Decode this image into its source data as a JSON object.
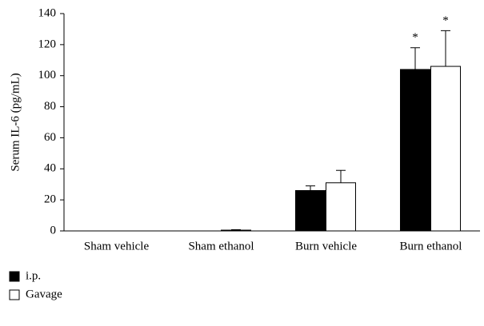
{
  "chart_data": {
    "type": "bar",
    "ylabel": "Serum IL-6 (pg/mL)",
    "categories": [
      "Sham vehicle",
      "Sham ethanol",
      "Burn vehicle",
      "Burn ethanol"
    ],
    "series": [
      {
        "name": "i.p.",
        "color": "#000000",
        "values": [
          0,
          0,
          26,
          104
        ],
        "errors": [
          0,
          0,
          3,
          14
        ],
        "markers": [
          null,
          null,
          null,
          "*"
        ]
      },
      {
        "name": "Gavage",
        "color": "#ffffff",
        "values": [
          0,
          0.5,
          31,
          106
        ],
        "errors": [
          0,
          0.3,
          8,
          23
        ],
        "markers": [
          null,
          null,
          null,
          "*"
        ]
      }
    ],
    "ylim": [
      0,
      140
    ],
    "yticks": [
      0,
      20,
      40,
      60,
      80,
      100,
      120,
      140
    ],
    "legend": "bottom-left"
  }
}
